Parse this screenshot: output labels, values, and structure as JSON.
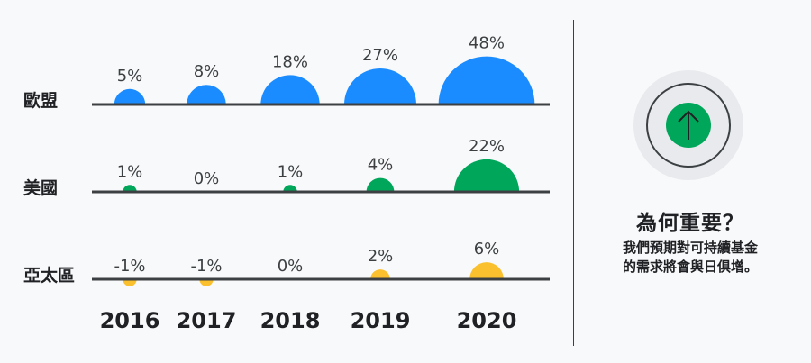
{
  "chart_data": {
    "type": "bubble-row",
    "categories": [
      "2016",
      "2017",
      "2018",
      "2019",
      "2020"
    ],
    "series": [
      {
        "name": "歐盟",
        "values": [
          5,
          8,
          18,
          27,
          48
        ],
        "labels": [
          "5%",
          "8%",
          "18%",
          "27%",
          "48%"
        ],
        "color": "#1a8cff"
      },
      {
        "name": "美國",
        "values": [
          1,
          0,
          1,
          4,
          22
        ],
        "labels": [
          "1%",
          "0%",
          "1%",
          "4%",
          "22%"
        ],
        "color": "#00a65a"
      },
      {
        "name": "亞太區",
        "values": [
          -1,
          -1,
          0,
          2,
          6
        ],
        "labels": [
          "-1%",
          "-1%",
          "0%",
          "2%",
          "6%"
        ],
        "color": "#fbc02d"
      }
    ]
  },
  "note": {
    "title": "為何重要？",
    "body_line1": "我們預期對可持續基金",
    "body_line2": "的需求將會與日俱增。"
  },
  "colors": {
    "axis": "#3c4043",
    "badge_bg": "#e8eaed",
    "badge_accent": "#00a65a"
  },
  "icons": {
    "badge": "arrow-up-icon"
  }
}
